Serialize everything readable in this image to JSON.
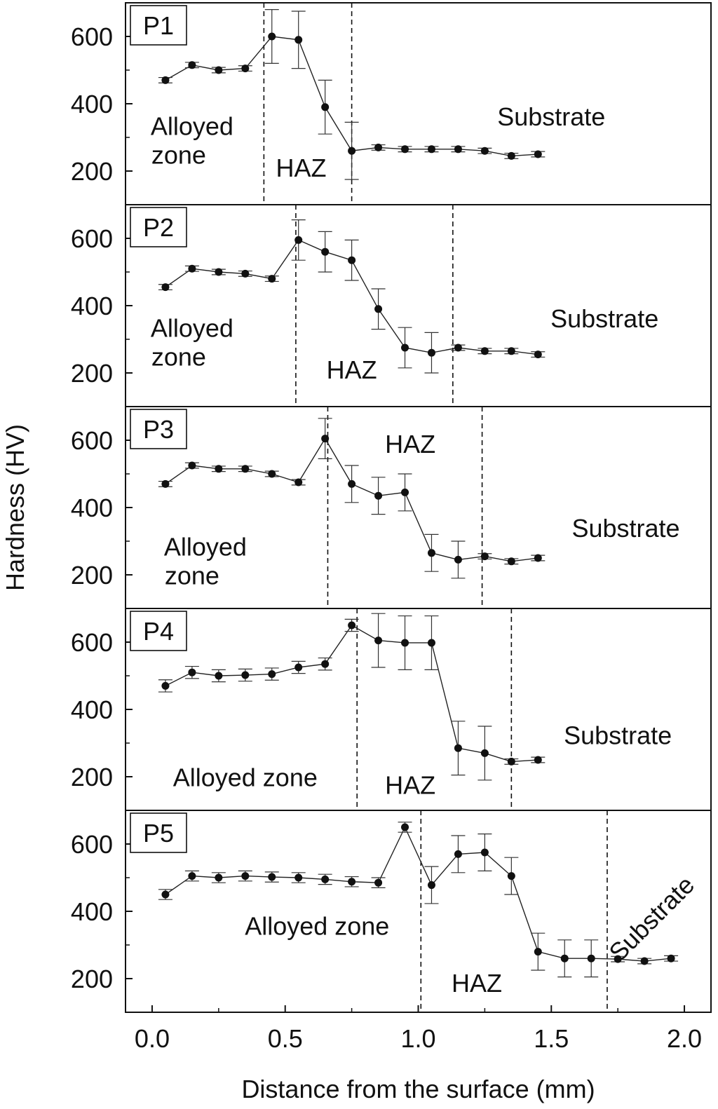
{
  "chart_data": {
    "type": "line",
    "xlabel": "Distance from the surface (mm)",
    "ylabel": "Hardness (HV)",
    "xlim": [
      -0.1,
      2.1
    ],
    "ylim": [
      100,
      700
    ],
    "x_ticks": [
      0.0,
      0.5,
      1.0,
      1.5,
      2.0
    ],
    "x_tick_labels": [
      "0.0",
      "0.5",
      "1.0",
      "1.5",
      "2.0"
    ],
    "y_ticks": [
      200,
      400,
      600
    ],
    "y_tick_labels": [
      "200",
      "400",
      "600"
    ],
    "grid": false,
    "panels": [
      {
        "label": "P1",
        "boundaries": [
          0.42,
          0.75
        ],
        "annotations": [
          {
            "text": "Substrate",
            "x": 1.5,
            "y": 335
          },
          {
            "text": "Alloyed",
            "x": 0.15,
            "y": 307
          },
          {
            "text": "zone",
            "x": 0.1,
            "y": 222
          },
          {
            "text": "HAZ",
            "x": 0.56,
            "y": 183
          }
        ],
        "series": [
          {
            "x": [
              0.05,
              0.15,
              0.25,
              0.35,
              0.45,
              0.55,
              0.65,
              0.75,
              0.85,
              0.95,
              1.05,
              1.15,
              1.25,
              1.35,
              1.45
            ],
            "y": [
              470,
              515,
              500,
              505,
              600,
              590,
              390,
              260,
              270,
              265,
              265,
              265,
              260,
              245,
              250
            ],
            "err": [
              8,
              8,
              8,
              8,
              80,
              85,
              80,
              85,
              8,
              8,
              8,
              8,
              8,
              8,
              8
            ]
          }
        ]
      },
      {
        "label": "P2",
        "boundaries": [
          0.54,
          1.13
        ],
        "annotations": [
          {
            "text": "Substrate",
            "x": 1.7,
            "y": 335
          },
          {
            "text": "Alloyed",
            "x": 0.15,
            "y": 307
          },
          {
            "text": "zone",
            "x": 0.1,
            "y": 222
          },
          {
            "text": "HAZ",
            "x": 0.75,
            "y": 183
          }
        ],
        "series": [
          {
            "x": [
              0.05,
              0.15,
              0.25,
              0.35,
              0.45,
              0.55,
              0.65,
              0.75,
              0.85,
              0.95,
              1.05,
              1.15,
              1.25,
              1.35,
              1.45
            ],
            "y": [
              455,
              510,
              500,
              495,
              480,
              595,
              560,
              535,
              390,
              275,
              260,
              275,
              265,
              265,
              255
            ],
            "err": [
              8,
              8,
              8,
              8,
              8,
              60,
              60,
              60,
              60,
              60,
              60,
              8,
              8,
              8,
              8
            ]
          }
        ]
      },
      {
        "label": "P3",
        "boundaries": [
          0.66,
          1.24
        ],
        "annotations": [
          {
            "text": "HAZ",
            "x": 0.97,
            "y": 562
          },
          {
            "text": "Substrate",
            "x": 1.78,
            "y": 312
          },
          {
            "text": "Alloyed",
            "x": 0.2,
            "y": 257
          },
          {
            "text": "zone",
            "x": 0.15,
            "y": 172
          }
        ],
        "series": [
          {
            "x": [
              0.05,
              0.15,
              0.25,
              0.35,
              0.45,
              0.55,
              0.65,
              0.75,
              0.85,
              0.95,
              1.05,
              1.15,
              1.25,
              1.35,
              1.45
            ],
            "y": [
              470,
              525,
              515,
              515,
              500,
              475,
              605,
              470,
              435,
              445,
              265,
              245,
              255,
              240,
              250
            ],
            "err": [
              8,
              8,
              8,
              8,
              8,
              8,
              60,
              55,
              55,
              55,
              55,
              55,
              8,
              8,
              8
            ]
          }
        ]
      },
      {
        "label": "P4",
        "boundaries": [
          0.77,
          1.35
        ],
        "annotations": [
          {
            "text": "Substrate",
            "x": 1.75,
            "y": 297
          },
          {
            "text": "Alloyed zone",
            "x": 0.35,
            "y": 172
          },
          {
            "text": "HAZ",
            "x": 0.97,
            "y": 149
          }
        ],
        "series": [
          {
            "x": [
              0.05,
              0.15,
              0.25,
              0.35,
              0.45,
              0.55,
              0.65,
              0.75,
              0.85,
              0.95,
              1.05,
              1.15,
              1.25,
              1.35,
              1.45
            ],
            "y": [
              470,
              510,
              500,
              502,
              505,
              525,
              535,
              650,
              605,
              598,
              598,
              285,
              270,
              245,
              250
            ],
            "err": [
              18,
              18,
              18,
              18,
              18,
              18,
              18,
              18,
              80,
              80,
              80,
              80,
              80,
              8,
              8
            ]
          }
        ]
      },
      {
        "label": "P5",
        "boundaries": [
          1.01,
          1.71
        ],
        "annotations": [
          {
            "text": "Alloyed zone",
            "x": 0.62,
            "y": 330
          },
          {
            "text": "HAZ",
            "x": 1.22,
            "y": 160
          },
          {
            "text": "Substrate",
            "x": 1.9,
            "y": 360,
            "rotation": -45
          }
        ],
        "series": [
          {
            "x": [
              0.05,
              0.15,
              0.25,
              0.35,
              0.45,
              0.55,
              0.65,
              0.75,
              0.85,
              0.95,
              1.05,
              1.15,
              1.25,
              1.35,
              1.45,
              1.55,
              1.65,
              1.75,
              1.85,
              1.95
            ],
            "y": [
              450,
              505,
              500,
              505,
              502,
              500,
              495,
              488,
              485,
              650,
              478,
              570,
              575,
              505,
              280,
              260,
              260,
              258,
              252,
              260
            ],
            "err": [
              15,
              15,
              15,
              15,
              15,
              15,
              15,
              15,
              15,
              15,
              55,
              55,
              55,
              55,
              55,
              55,
              55,
              8,
              8,
              8
            ]
          }
        ]
      }
    ]
  }
}
